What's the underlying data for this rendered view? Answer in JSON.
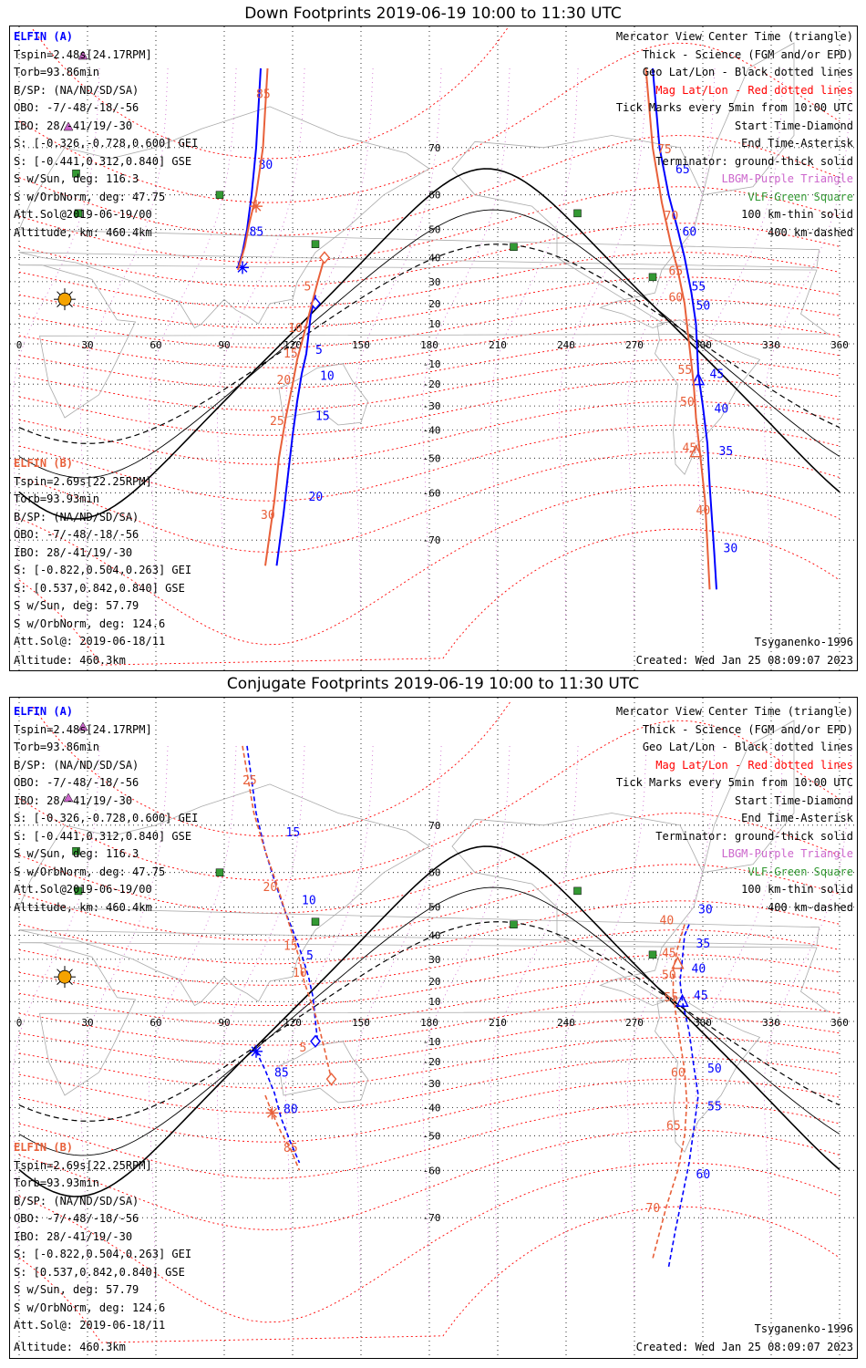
{
  "colors": {
    "elfin_a": "#0000ff",
    "elfin_b": "#e8603a",
    "mag_grid": "#ff0000",
    "geo_grid": "#000000",
    "lobe": "#cc66cc",
    "vlf": "#339933",
    "coast": "#aaaaaa"
  },
  "icons": {
    "sun": "sun-icon",
    "vlf": "green-square-icon",
    "lobe": "purple-triangle-icon"
  },
  "legend": {
    "items": [
      {
        "text": "Mercator View Center Time (triangle)",
        "color": "#000000"
      },
      {
        "text": "Thick - Science (FGM and/or EPD)",
        "color": "#000000"
      },
      {
        "text": "Geo Lat/Lon - Black dotted lines",
        "color": "#000000"
      },
      {
        "text": "Mag Lat/Lon - Red dotted lines",
        "color": "#ff0000"
      },
      {
        "text": "Tick Marks every 5min from 10:00 UTC",
        "color": "#000000"
      },
      {
        "text": "Start Time-Diamond",
        "color": "#000000"
      },
      {
        "text": "End Time-Asterisk",
        "color": "#000000"
      },
      {
        "text": "Terminator: ground-thick solid",
        "color": "#000000"
      },
      {
        "text": "LBGM-Purple Triangle",
        "color": "#cc66cc"
      },
      {
        "text": "VLF-Green Square",
        "color": "#339933"
      },
      {
        "text": "100 km-thin solid",
        "color": "#000000"
      },
      {
        "text": "400 km-dashed",
        "color": "#000000"
      }
    ]
  },
  "elfin_a": {
    "header": "ELFIN (A)",
    "lines": [
      "Tspin=2.48s[24.17RPM]",
      "Torb=93.86min",
      "B/SP: (NA/ND/SD/SA)",
      "OBO: -7/-48/-18/-56",
      "IBO: 28/-41/19/-30",
      "S: [-0.326,-0.728,0.600] GEI",
      "S: [-0.441,0.312,0.840] GSE",
      "S w/Sun, deg: 116.3",
      "S w/OrbNorm, deg: 47.75",
      "Att.Sol@2019-06-19/00",
      "Altitude, km: 460.4km"
    ]
  },
  "elfin_b": {
    "header": "ELFIN (B)",
    "lines": [
      "Tspin=2.69s[22.25RPM]",
      "Torb=93.93min",
      "B/SP: (NA/ND/SD/SA)",
      "OBO: -7/-48/-18/-56",
      "IBO: 28/-41/19/-30",
      "S: [-0.822,0.504,0.263] GEI",
      "S: [0.537,0.842,0.840] GSE",
      "S w/Sun, deg: 57.79",
      "S w/OrbNorm, deg: 124.6",
      "Att.Sol@: 2019-06-18/11",
      "Altitude: 460.3km"
    ]
  },
  "footer": {
    "model": "Tsyganenko-1996",
    "created": "Created: Wed Jan 25 08:09:07 2023"
  },
  "lon_ticks": [
    "0",
    "30",
    "60",
    "90",
    "120",
    "150",
    "180",
    "210",
    "240",
    "270",
    "300",
    "330",
    "360"
  ],
  "lat_ticks": [
    "70",
    "60",
    "50",
    "40",
    "30",
    "20",
    "10",
    "-10",
    "-20",
    "-30",
    "-40",
    "-50",
    "-60",
    "-70"
  ],
  "vlf_stations": [
    {
      "lon": 88,
      "lat": 60
    },
    {
      "lon": 26,
      "lat": 55
    },
    {
      "lon": 130,
      "lat": 45
    },
    {
      "lon": 217,
      "lat": 44
    },
    {
      "lon": 245,
      "lat": 55
    },
    {
      "lon": 278,
      "lat": 32
    },
    {
      "lon": 25,
      "lat": 65
    }
  ],
  "panels": [
    {
      "title": "Down Footprints 2019-06-19 10:00 to 11:30 UTC",
      "dashed": false,
      "tracks": [
        {
          "name": "a-north",
          "color": "#0000ff",
          "points": [
            [
              106,
              80
            ],
            [
              104,
              70
            ],
            [
              102,
              60
            ],
            [
              100,
              50
            ],
            [
              98,
              42
            ],
            [
              96,
              36
            ]
          ],
          "labels": [
            {
              "t": "80",
              "lon": 105,
              "lat": 66
            },
            {
              "t": "85",
              "lon": 101,
              "lat": 48
            }
          ],
          "end": [
            98,
            36
          ]
        },
        {
          "name": "b-north",
          "color": "#e8603a",
          "points": [
            [
              109,
              80
            ],
            [
              107,
              70
            ],
            [
              104,
              60
            ],
            [
              101,
              52
            ],
            [
              99,
              44
            ],
            [
              96,
              35
            ]
          ],
          "labels": [
            {
              "t": "85",
              "lon": 104,
              "lat": 77
            }
          ],
          "end": [
            104,
            57
          ]
        },
        {
          "name": "a-start",
          "color": "#0000ff",
          "points": [
            [
              130,
              24
            ],
            [
              128,
              15
            ],
            [
              127,
              5
            ],
            [
              126,
              -5
            ],
            [
              124,
              -15
            ],
            [
              122,
              -28
            ],
            [
              120,
              -42
            ],
            [
              118,
              -55
            ],
            [
              116,
              -65
            ],
            [
              113,
              -74
            ]
          ],
          "labels": [
            {
              "t": "5",
              "lon": 130,
              "lat": -5
            },
            {
              "t": "10",
              "lon": 132,
              "lat": -18
            },
            {
              "t": "15",
              "lon": 130,
              "lat": -36
            },
            {
              "t": "20",
              "lon": 127,
              "lat": -62
            }
          ],
          "start": [
            130,
            20
          ]
        },
        {
          "name": "b-start",
          "color": "#e8603a",
          "points": [
            [
              134,
              40
            ],
            [
              131,
              30
            ],
            [
              128,
              18
            ],
            [
              125,
              5
            ],
            [
              122,
              -8
            ],
            [
              120,
              -20
            ],
            [
              117,
              -35
            ],
            [
              114,
              -50
            ],
            [
              112,
              -62
            ],
            [
              108,
              -74
            ]
          ],
          "labels": [
            {
              "t": "5",
              "lon": 125,
              "lat": 26
            },
            {
              "t": "10",
              "lon": 118,
              "lat": 6
            },
            {
              "t": "15",
              "lon": 116,
              "lat": -7
            },
            {
              "t": "20",
              "lon": 113,
              "lat": -20
            },
            {
              "t": "25",
              "lon": 110,
              "lat": -38
            },
            {
              "t": "30",
              "lon": 106,
              "lat": -66
            }
          ],
          "start": [
            134,
            40
          ]
        },
        {
          "name": "a-end",
          "color": "#0000ff",
          "points": [
            [
              278,
              80
            ],
            [
              281,
              70
            ],
            [
              285,
              60
            ],
            [
              289,
              50
            ],
            [
              292,
              40
            ],
            [
              295,
              25
            ],
            [
              297,
              10
            ],
            [
              298,
              -15
            ],
            [
              300,
              -30
            ],
            [
              302,
              -45
            ],
            [
              303,
              -58
            ],
            [
              305,
              -72
            ],
            [
              306,
              -77
            ]
          ],
          "labels": [
            {
              "t": "65",
              "lon": 288,
              "lat": 65
            },
            {
              "t": "60",
              "lon": 291,
              "lat": 48
            },
            {
              "t": "55",
              "lon": 295,
              "lat": 26
            },
            {
              "t": "50",
              "lon": 297,
              "lat": 17
            },
            {
              "t": "45",
              "lon": 303,
              "lat": -17
            },
            {
              "t": "40",
              "lon": 305,
              "lat": -33
            },
            {
              "t": "35",
              "lon": 307,
              "lat": -49
            },
            {
              "t": "30",
              "lon": 309,
              "lat": -72
            }
          ],
          "tri": [
            298,
            -18
          ]
        },
        {
          "name": "b-end",
          "color": "#e8603a",
          "points": [
            [
              275,
              80
            ],
            [
              278,
              70
            ],
            [
              282,
              58
            ],
            [
              286,
              45
            ],
            [
              289,
              35
            ],
            [
              292,
              20
            ],
            [
              294,
              0
            ],
            [
              296,
              -20
            ],
            [
              297,
              -35
            ],
            [
              299,
              -50
            ],
            [
              301,
              -62
            ],
            [
              303,
              -77
            ]
          ],
          "labels": [
            {
              "t": "75",
              "lon": 280,
              "lat": 69
            },
            {
              "t": "70",
              "lon": 283,
              "lat": 53
            },
            {
              "t": "65",
              "lon": 285,
              "lat": 33
            },
            {
              "t": "60",
              "lon": 285,
              "lat": 21
            },
            {
              "t": "55",
              "lon": 289,
              "lat": -15
            },
            {
              "t": "50",
              "lon": 290,
              "lat": -30
            },
            {
              "t": "45",
              "lon": 291,
              "lat": -48
            },
            {
              "t": "40",
              "lon": 297,
              "lat": -65
            }
          ],
          "tri": [
            297,
            -48
          ]
        }
      ]
    },
    {
      "title": "Conjugate Footprints 2019-06-19 10:00 to 11:30 UTC",
      "dashed": true,
      "tracks": [
        {
          "name": "a-conj-n",
          "color": "#0000ff",
          "points": [
            [
              100,
              80
            ],
            [
              104,
              72
            ],
            [
              108,
              65
            ],
            [
              112,
              58
            ],
            [
              116,
              50
            ],
            [
              120,
              42
            ],
            [
              124,
              32
            ],
            [
              127,
              22
            ],
            [
              129,
              12
            ],
            [
              130,
              0
            ],
            [
              131,
              -10
            ]
          ],
          "labels": [
            {
              "t": "15",
              "lon": 117,
              "lat": 68
            },
            {
              "t": "10",
              "lon": 124,
              "lat": 51
            },
            {
              "t": "5",
              "lon": 126,
              "lat": 30
            }
          ],
          "start": [
            130,
            -10
          ]
        },
        {
          "name": "b-conj-n",
          "color": "#e8603a",
          "points": [
            [
              98,
              80
            ],
            [
              103,
              72
            ],
            [
              108,
              65
            ],
            [
              113,
              57
            ],
            [
              117,
              48
            ],
            [
              120,
              40
            ],
            [
              123,
              30
            ],
            [
              125,
              20
            ],
            [
              128,
              10
            ],
            [
              131,
              0
            ],
            [
              134,
              -14
            ],
            [
              137,
              -28
            ]
          ],
          "labels": [
            {
              "t": "25",
              "lon": 98,
              "lat": 76
            },
            {
              "t": "20",
              "lon": 107,
              "lat": 55
            },
            {
              "t": "15",
              "lon": 116,
              "lat": 34
            },
            {
              "t": "10",
              "lon": 120,
              "lat": 22
            },
            {
              "t": "5",
              "lon": 123,
              "lat": -15
            }
          ],
          "start": [
            137,
            -28
          ]
        },
        {
          "name": "a-conj-s",
          "color": "#0000ff",
          "points": [
            [
              104,
              -15
            ],
            [
              108,
              -24
            ],
            [
              112,
              -34
            ],
            [
              115,
              -44
            ],
            [
              119,
              -52
            ],
            [
              123,
              -58
            ]
          ],
          "labels": [
            {
              "t": "85",
              "lon": 112,
              "lat": -27
            },
            {
              "t": "80",
              "lon": 116,
              "lat": -42
            }
          ],
          "end": [
            104,
            -15
          ]
        },
        {
          "name": "b-conj-s",
          "color": "#e8603a",
          "points": [
            [
              108,
              -35
            ],
            [
              111,
              -42
            ],
            [
              115,
              -49
            ],
            [
              119,
              -54
            ],
            [
              123,
              -60
            ]
          ],
          "labels": [
            {
              "t": "85",
              "lon": 116,
              "lat": -55
            }
          ],
          "end": [
            111,
            -42
          ]
        },
        {
          "name": "a-conj-e",
          "color": "#0000ff",
          "points": [
            [
              294,
              44
            ],
            [
              292,
              40
            ],
            [
              291,
              30
            ],
            [
              290,
              20
            ],
            [
              291,
              10
            ],
            [
              294,
              -5
            ],
            [
              296,
              -22
            ],
            [
              298,
              -35
            ],
            [
              296,
              -48
            ],
            [
              294,
              -58
            ],
            [
              291,
              -66
            ],
            [
              288,
              -72
            ],
            [
              285,
              -77
            ]
          ],
          "labels": [
            {
              "t": "30",
              "lon": 298,
              "lat": 48
            },
            {
              "t": "35",
              "lon": 297,
              "lat": 35
            },
            {
              "t": "40",
              "lon": 295,
              "lat": 24
            },
            {
              "t": "45",
              "lon": 296,
              "lat": 11
            },
            {
              "t": "50",
              "lon": 302,
              "lat": -25
            },
            {
              "t": "55",
              "lon": 302,
              "lat": -41
            },
            {
              "t": "60",
              "lon": 297,
              "lat": -62
            }
          ],
          "tri": [
            291,
            10
          ]
        },
        {
          "name": "b-conj-e",
          "color": "#e8603a",
          "points": [
            [
              292,
              44
            ],
            [
              289,
              35
            ],
            [
              287,
              25
            ],
            [
              287,
              15
            ],
            [
              288,
              5
            ],
            [
              290,
              -10
            ],
            [
              292,
              -24
            ],
            [
              293,
              -38
            ],
            [
              292,
              -50
            ],
            [
              289,
              -60
            ],
            [
              284,
              -68
            ],
            [
              278,
              -76
            ]
          ],
          "labels": [
            {
              "t": "40",
              "lon": 281,
              "lat": 44
            },
            {
              "t": "45",
              "lon": 282,
              "lat": 31
            },
            {
              "t": "50",
              "lon": 282,
              "lat": 21
            },
            {
              "t": "55",
              "lon": 283,
              "lat": 10
            },
            {
              "t": "60",
              "lon": 286,
              "lat": -27
            },
            {
              "t": "65",
              "lon": 284,
              "lat": -48
            },
            {
              "t": "70",
              "lon": 275,
              "lat": -69
            }
          ],
          "tri": [
            289,
            28
          ]
        }
      ]
    }
  ]
}
